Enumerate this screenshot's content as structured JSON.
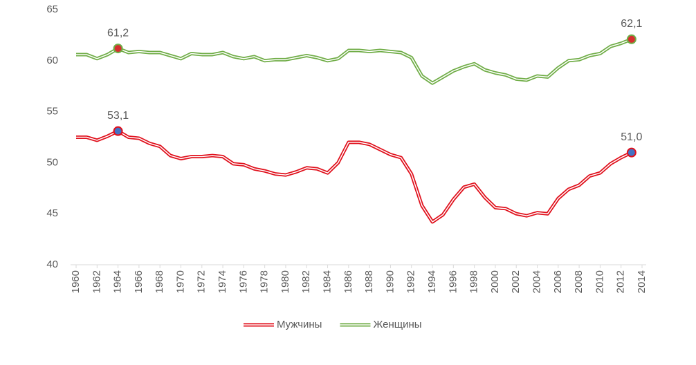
{
  "chart_data": {
    "type": "line",
    "x": [
      1960,
      1961,
      1962,
      1963,
      1964,
      1965,
      1966,
      1967,
      1968,
      1969,
      1970,
      1971,
      1972,
      1973,
      1974,
      1975,
      1976,
      1977,
      1978,
      1979,
      1980,
      1981,
      1982,
      1983,
      1984,
      1985,
      1986,
      1987,
      1988,
      1989,
      1990,
      1991,
      1992,
      1993,
      1994,
      1995,
      1996,
      1997,
      1998,
      1999,
      2000,
      2001,
      2002,
      2003,
      2004,
      2005,
      2006,
      2007,
      2008,
      2009,
      2010,
      2011,
      2012,
      2013
    ],
    "series": [
      {
        "name": "Мужчины",
        "color": "#e0101c",
        "marker_color": "#4472c4",
        "values": [
          52.5,
          52.5,
          52.2,
          52.6,
          53.1,
          52.5,
          52.4,
          51.9,
          51.6,
          50.7,
          50.4,
          50.6,
          50.6,
          50.7,
          50.6,
          49.9,
          49.8,
          49.4,
          49.2,
          48.9,
          48.8,
          49.1,
          49.5,
          49.4,
          49.0,
          50.0,
          52.0,
          52.0,
          51.8,
          51.3,
          50.8,
          50.5,
          48.9,
          45.8,
          44.2,
          44.9,
          46.4,
          47.6,
          47.9,
          46.6,
          45.6,
          45.5,
          45.0,
          44.8,
          45.1,
          45.0,
          46.5,
          47.4,
          47.8,
          48.7,
          49.0,
          49.9,
          50.5,
          51.0
        ],
        "value_labels": [
          null,
          null,
          null,
          null,
          "53,1",
          null,
          null,
          null,
          null,
          null,
          null,
          null,
          null,
          null,
          null,
          null,
          null,
          null,
          null,
          null,
          null,
          null,
          null,
          null,
          null,
          null,
          null,
          null,
          null,
          null,
          null,
          null,
          null,
          null,
          null,
          null,
          null,
          null,
          null,
          null,
          null,
          null,
          null,
          null,
          null,
          null,
          null,
          null,
          null,
          null,
          null,
          null,
          null,
          "51,0"
        ]
      },
      {
        "name": "Женщины",
        "color": "#70ad47",
        "marker_color": "#d62f2f",
        "values": [
          60.6,
          60.6,
          60.2,
          60.6,
          61.2,
          60.8,
          60.9,
          60.8,
          60.8,
          60.5,
          60.2,
          60.7,
          60.6,
          60.6,
          60.8,
          60.4,
          60.2,
          60.4,
          60.0,
          60.1,
          60.1,
          60.3,
          60.5,
          60.3,
          60.0,
          60.2,
          61.0,
          61.0,
          60.9,
          61.0,
          60.9,
          60.8,
          60.3,
          58.5,
          57.8,
          58.4,
          59.0,
          59.4,
          59.7,
          59.1,
          58.8,
          58.6,
          58.2,
          58.1,
          58.5,
          58.4,
          59.3,
          60.0,
          60.1,
          60.5,
          60.7,
          61.4,
          61.7,
          62.1
        ],
        "value_labels": [
          null,
          null,
          null,
          null,
          "61,2",
          null,
          null,
          null,
          null,
          null,
          null,
          null,
          null,
          null,
          null,
          null,
          null,
          null,
          null,
          null,
          null,
          null,
          null,
          null,
          null,
          null,
          null,
          null,
          null,
          null,
          null,
          null,
          null,
          null,
          null,
          null,
          null,
          null,
          null,
          null,
          null,
          null,
          null,
          null,
          null,
          null,
          null,
          null,
          null,
          null,
          null,
          null,
          null,
          "62,1"
        ]
      }
    ],
    "xlim": [
      1960,
      2014
    ],
    "xticks": [
      1960,
      1962,
      1964,
      1966,
      1968,
      1970,
      1972,
      1974,
      1976,
      1978,
      1980,
      1982,
      1984,
      1986,
      1988,
      1990,
      1992,
      1994,
      1996,
      1998,
      2000,
      2002,
      2004,
      2006,
      2008,
      2010,
      2012,
      2014
    ],
    "ylim": [
      40,
      65
    ],
    "yticks": [
      40,
      45,
      50,
      55,
      60,
      65
    ],
    "grid": false,
    "legend": "bottom"
  }
}
